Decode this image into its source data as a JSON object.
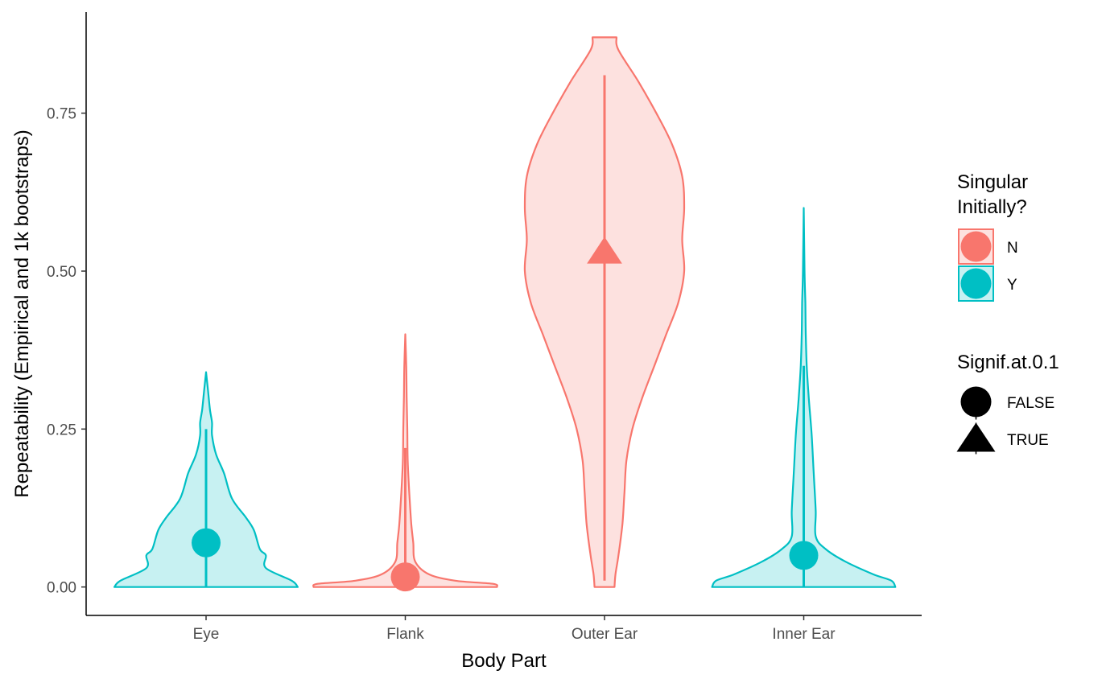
{
  "chart_data": {
    "type": "violin",
    "xlabel": "Body Part",
    "ylabel": "Repeatability (Empirical and 1k bootstraps)",
    "categories": [
      "Eye",
      "Flank",
      "Outer Ear",
      "Inner Ear"
    ],
    "ylim": [
      -0.045,
      0.91
    ],
    "yticks": [
      0.0,
      0.25,
      0.5,
      0.75
    ],
    "ytick_labels": [
      "0.00",
      "0.25",
      "0.50",
      "0.75"
    ],
    "grid": false,
    "colors": {
      "N": "#F8766D",
      "Y": "#00BFC4"
    },
    "violins": [
      {
        "category": "Eye",
        "singular": "Y",
        "signif": "FALSE",
        "estimate": 0.07,
        "ci": [
          0.0,
          0.25
        ],
        "max": 0.34,
        "density": [
          [
            0.0,
            0.46
          ],
          [
            0.01,
            0.43
          ],
          [
            0.03,
            0.3
          ],
          [
            0.05,
            0.3
          ],
          [
            0.06,
            0.27
          ],
          [
            0.09,
            0.24
          ],
          [
            0.11,
            0.2
          ],
          [
            0.14,
            0.13
          ],
          [
            0.18,
            0.09
          ],
          [
            0.21,
            0.05
          ],
          [
            0.24,
            0.03
          ],
          [
            0.26,
            0.03
          ],
          [
            0.28,
            0.02
          ],
          [
            0.31,
            0.01
          ],
          [
            0.34,
            0.0
          ]
        ]
      },
      {
        "category": "Flank",
        "singular": "N",
        "signif": "FALSE",
        "estimate": 0.016,
        "ci": [
          0.0,
          0.22
        ],
        "max": 0.4,
        "density": [
          [
            0.0,
            0.46
          ],
          [
            0.005,
            0.44
          ],
          [
            0.01,
            0.25
          ],
          [
            0.02,
            0.12
          ],
          [
            0.04,
            0.05
          ],
          [
            0.07,
            0.04
          ],
          [
            0.1,
            0.03
          ],
          [
            0.15,
            0.02
          ],
          [
            0.2,
            0.012
          ],
          [
            0.25,
            0.01
          ],
          [
            0.3,
            0.007
          ],
          [
            0.35,
            0.005
          ],
          [
            0.4,
            0.0
          ]
        ]
      },
      {
        "category": "Outer Ear",
        "singular": "N",
        "signif": "TRUE",
        "estimate": 0.53,
        "ci": [
          0.01,
          0.81
        ],
        "max": 0.87,
        "density": [
          [
            0.0,
            0.05
          ],
          [
            0.02,
            0.055
          ],
          [
            0.05,
            0.07
          ],
          [
            0.1,
            0.09
          ],
          [
            0.15,
            0.1
          ],
          [
            0.2,
            0.11
          ],
          [
            0.25,
            0.14
          ],
          [
            0.3,
            0.19
          ],
          [
            0.35,
            0.25
          ],
          [
            0.4,
            0.31
          ],
          [
            0.45,
            0.37
          ],
          [
            0.5,
            0.4
          ],
          [
            0.55,
            0.39
          ],
          [
            0.6,
            0.4
          ],
          [
            0.65,
            0.39
          ],
          [
            0.7,
            0.34
          ],
          [
            0.75,
            0.26
          ],
          [
            0.8,
            0.17
          ],
          [
            0.85,
            0.07
          ],
          [
            0.87,
            0.06
          ]
        ]
      },
      {
        "category": "Inner Ear",
        "singular": "Y",
        "signif": "FALSE",
        "estimate": 0.05,
        "ci": [
          0.0,
          0.35
        ],
        "max": 0.6,
        "density": [
          [
            0.0,
            0.46
          ],
          [
            0.01,
            0.44
          ],
          [
            0.02,
            0.35
          ],
          [
            0.04,
            0.21
          ],
          [
            0.06,
            0.11
          ],
          [
            0.08,
            0.06
          ],
          [
            0.12,
            0.06
          ],
          [
            0.18,
            0.05
          ],
          [
            0.24,
            0.04
          ],
          [
            0.3,
            0.025
          ],
          [
            0.35,
            0.015
          ],
          [
            0.4,
            0.01
          ],
          [
            0.45,
            0.008
          ],
          [
            0.5,
            0.004
          ],
          [
            0.6,
            0.0
          ]
        ]
      }
    ],
    "legend": {
      "position": "right",
      "color": {
        "title_lines": [
          "Singular",
          "Initially?"
        ],
        "entries": [
          {
            "key": "N",
            "label": "N"
          },
          {
            "key": "Y",
            "label": "Y"
          }
        ]
      },
      "shape": {
        "title": "Signif.at.0.1",
        "entries": [
          {
            "key": "FALSE",
            "label": "FALSE",
            "shape": "circle"
          },
          {
            "key": "TRUE",
            "label": "TRUE",
            "shape": "triangle"
          }
        ]
      }
    }
  }
}
